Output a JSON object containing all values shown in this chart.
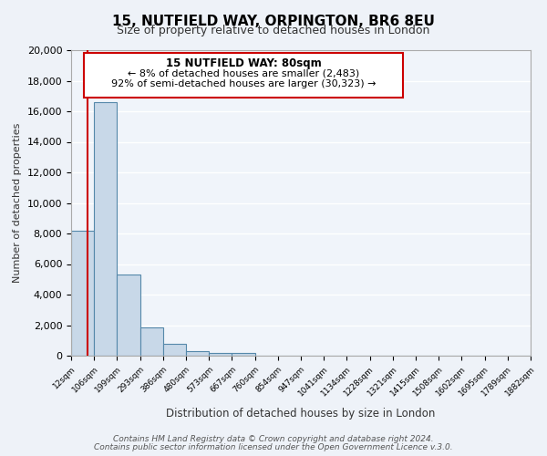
{
  "title": "15, NUTFIELD WAY, ORPINGTON, BR6 8EU",
  "subtitle": "Size of property relative to detached houses in London",
  "xlabel": "Distribution of detached houses by size in London",
  "ylabel": "Number of detached properties",
  "bin_labels": [
    "12sqm",
    "106sqm",
    "199sqm",
    "293sqm",
    "386sqm",
    "480sqm",
    "573sqm",
    "667sqm",
    "760sqm",
    "854sqm",
    "947sqm",
    "1041sqm",
    "1134sqm",
    "1228sqm",
    "1321sqm",
    "1415sqm",
    "1508sqm",
    "1602sqm",
    "1695sqm",
    "1789sqm",
    "1882sqm"
  ],
  "bar_values": [
    8200,
    16600,
    5300,
    1850,
    750,
    300,
    200,
    150,
    0,
    0,
    0,
    0,
    0,
    0,
    0,
    0,
    0,
    0,
    0,
    0
  ],
  "bar_color": "#c8d8e8",
  "bar_edge_color": "#5588aa",
  "ylim": [
    0,
    20000
  ],
  "yticks": [
    0,
    2000,
    4000,
    6000,
    8000,
    10000,
    12000,
    14000,
    16000,
    18000,
    20000
  ],
  "property_line_color": "#cc0000",
  "annotation_title": "15 NUTFIELD WAY: 80sqm",
  "annotation_line1": "← 8% of detached houses are smaller (2,483)",
  "annotation_line2": "92% of semi-detached houses are larger (30,323) →",
  "annotation_box_color": "#ffffff",
  "annotation_box_edge": "#cc0000",
  "footer_line1": "Contains HM Land Registry data © Crown copyright and database right 2024.",
  "footer_line2": "Contains public sector information licensed under the Open Government Licence v.3.0.",
  "bg_color": "#eef2f8",
  "plot_bg_color": "#f0f4fa",
  "grid_color": "#ffffff",
  "bin_edges_sqm": [
    12,
    106,
    199,
    293,
    386,
    480,
    573,
    667,
    760,
    854,
    947,
    1041,
    1134,
    1228,
    1321,
    1415,
    1508,
    1602,
    1695,
    1789,
    1882
  ],
  "property_sqm": 80
}
